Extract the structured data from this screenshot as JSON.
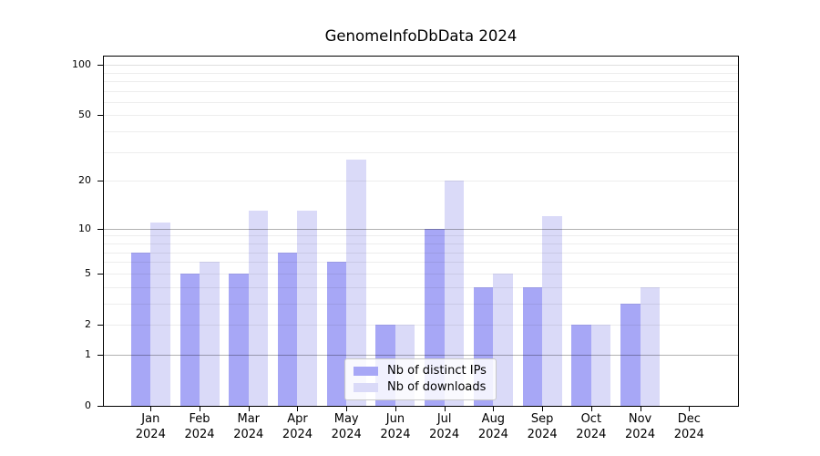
{
  "figure": {
    "background": "#ffffff",
    "axis_color": "#000000"
  },
  "chart_data": {
    "type": "bar",
    "title": "GenomeInfoDbData 2024",
    "year": "2024",
    "categories": [
      "Jan",
      "Feb",
      "Mar",
      "Apr",
      "May",
      "Jun",
      "Jul",
      "Aug",
      "Sep",
      "Oct",
      "Nov",
      "Dec"
    ],
    "series": [
      {
        "name": "Nb of distinct IPs",
        "color": "#a7a7f6",
        "values": [
          7,
          5,
          5,
          7,
          6,
          2,
          10,
          4,
          4,
          2,
          3,
          0
        ]
      },
      {
        "name": "Nb of downloads",
        "color": "#dadaf8",
        "values": [
          11,
          6,
          13,
          13,
          27,
          2,
          20,
          5,
          12,
          2,
          4,
          0
        ]
      }
    ],
    "scale": "log1p",
    "ylim": [
      0,
      112
    ],
    "xlabel": "",
    "ylabel": "",
    "y_ticks": [
      0,
      1,
      2,
      5,
      10,
      20,
      50,
      100
    ],
    "y_minor_gridlines": [
      3,
      4,
      6,
      7,
      8,
      9,
      30,
      40,
      60,
      70,
      80,
      90
    ],
    "grid": {
      "on": true,
      "drawn_over_bars": true,
      "minor_color": "rgba(0,0,0,0.07)",
      "major_color": "rgba(0,0,0,0.30)",
      "soft_color": "rgba(0,0,0,0.13)",
      "major_values": [
        1,
        10
      ],
      "soft_values": [
        100
      ]
    },
    "legend_position": "bottom-center-inside"
  }
}
